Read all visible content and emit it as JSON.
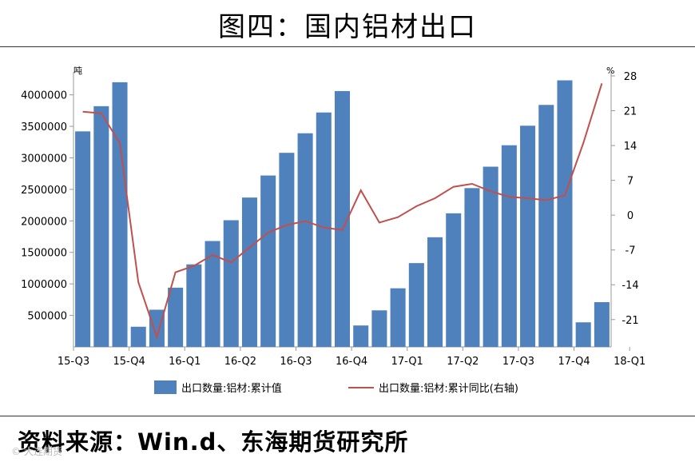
{
  "title": "图四：国内铝材出口",
  "source": "资料来源：Win.d、东海期货研究所",
  "watermark": "© 大连期货",
  "chart_data": {
    "type": "bar+line",
    "x_tick_labels": [
      "15-Q3",
      "15-Q4",
      "16-Q1",
      "16-Q2",
      "16-Q3",
      "16-Q4",
      "17-Q1",
      "17-Q2",
      "17-Q3",
      "17-Q4",
      "18-Q1"
    ],
    "left_axis": {
      "unit": "吨",
      "ticks": [
        500000,
        1000000,
        1500000,
        2000000,
        2500000,
        3000000,
        3500000,
        4000000
      ],
      "ylim": [
        0,
        4300000
      ]
    },
    "right_axis": {
      "unit": "%",
      "ticks": [
        -21,
        -14,
        -7,
        0,
        7,
        14,
        21,
        28
      ],
      "ylim": [
        -26.5,
        28
      ]
    },
    "series": [
      {
        "name": "出口数量:铝材:累计值",
        "type": "bar",
        "color": "#4f81bd",
        "values": [
          3420000,
          3820000,
          4200000,
          320000,
          590000,
          940000,
          1310000,
          1680000,
          2010000,
          2370000,
          2720000,
          3080000,
          3390000,
          3720000,
          4060000,
          340000,
          580000,
          930000,
          1330000,
          1740000,
          2120000,
          2520000,
          2860000,
          3200000,
          3510000,
          3840000,
          4230000,
          390000,
          710000
        ]
      },
      {
        "name": "出口数量:铝材:累计同比(右轴)",
        "type": "line",
        "axis": "right",
        "color": "#c0504d",
        "values": [
          20.8,
          20.5,
          14.5,
          -13.5,
          -24.5,
          -11.5,
          -10.2,
          -8.0,
          -9.5,
          -6.5,
          -3.5,
          -2.0,
          -1.2,
          -2.5,
          -3.0,
          5.0,
          -1.5,
          -0.4,
          1.8,
          3.4,
          5.7,
          6.3,
          4.8,
          3.7,
          3.4,
          3.0,
          4.0,
          14.5,
          26.5
        ]
      }
    ]
  }
}
